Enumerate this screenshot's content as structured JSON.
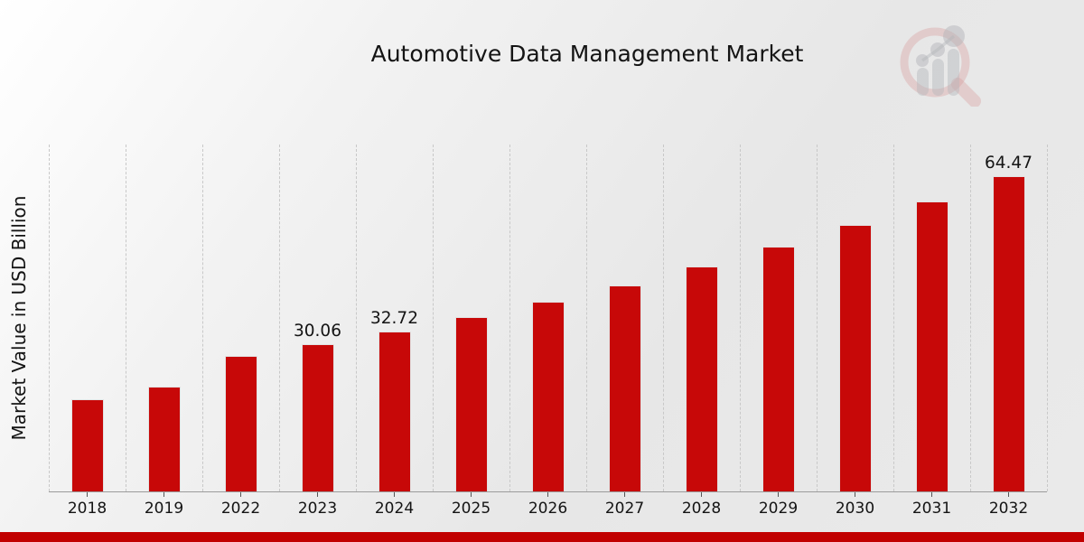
{
  "page": {
    "title": "Automotive Data Management Market",
    "footer_accent_color": "#c10000"
  },
  "chart_data": {
    "type": "bar",
    "title": "Automotive Data Management Market",
    "xlabel": "",
    "ylabel": "Market Value in USD Billion",
    "categories": [
      "2018",
      "2019",
      "2022",
      "2023",
      "2024",
      "2025",
      "2026",
      "2027",
      "2028",
      "2029",
      "2030",
      "2031",
      "2032"
    ],
    "values": [
      18.9,
      21.4,
      27.7,
      30.06,
      32.72,
      35.6,
      38.8,
      42.2,
      46.0,
      50.1,
      54.5,
      59.3,
      64.47
    ],
    "value_labels": [
      "",
      "",
      "",
      "30.06",
      "32.72",
      "",
      "",
      "",
      "",
      "",
      "",
      "",
      "64.47"
    ],
    "ylim": [
      0,
      71
    ],
    "grid": "vertical dashed lines at category boundaries, no horizontal gridlines, no y tick labels",
    "legend_position": "none",
    "bar_color": "#c70808",
    "bar_edge_color": "#e2e2e2",
    "axis_line_color": "#9b9b9b",
    "label_color": "#141414"
  },
  "logo": {
    "name": "magnifier-bar-chart-watermark",
    "ring_color": "rgba(200,90,90,0.35)",
    "bars_color": "rgba(140,142,150,0.45)"
  }
}
